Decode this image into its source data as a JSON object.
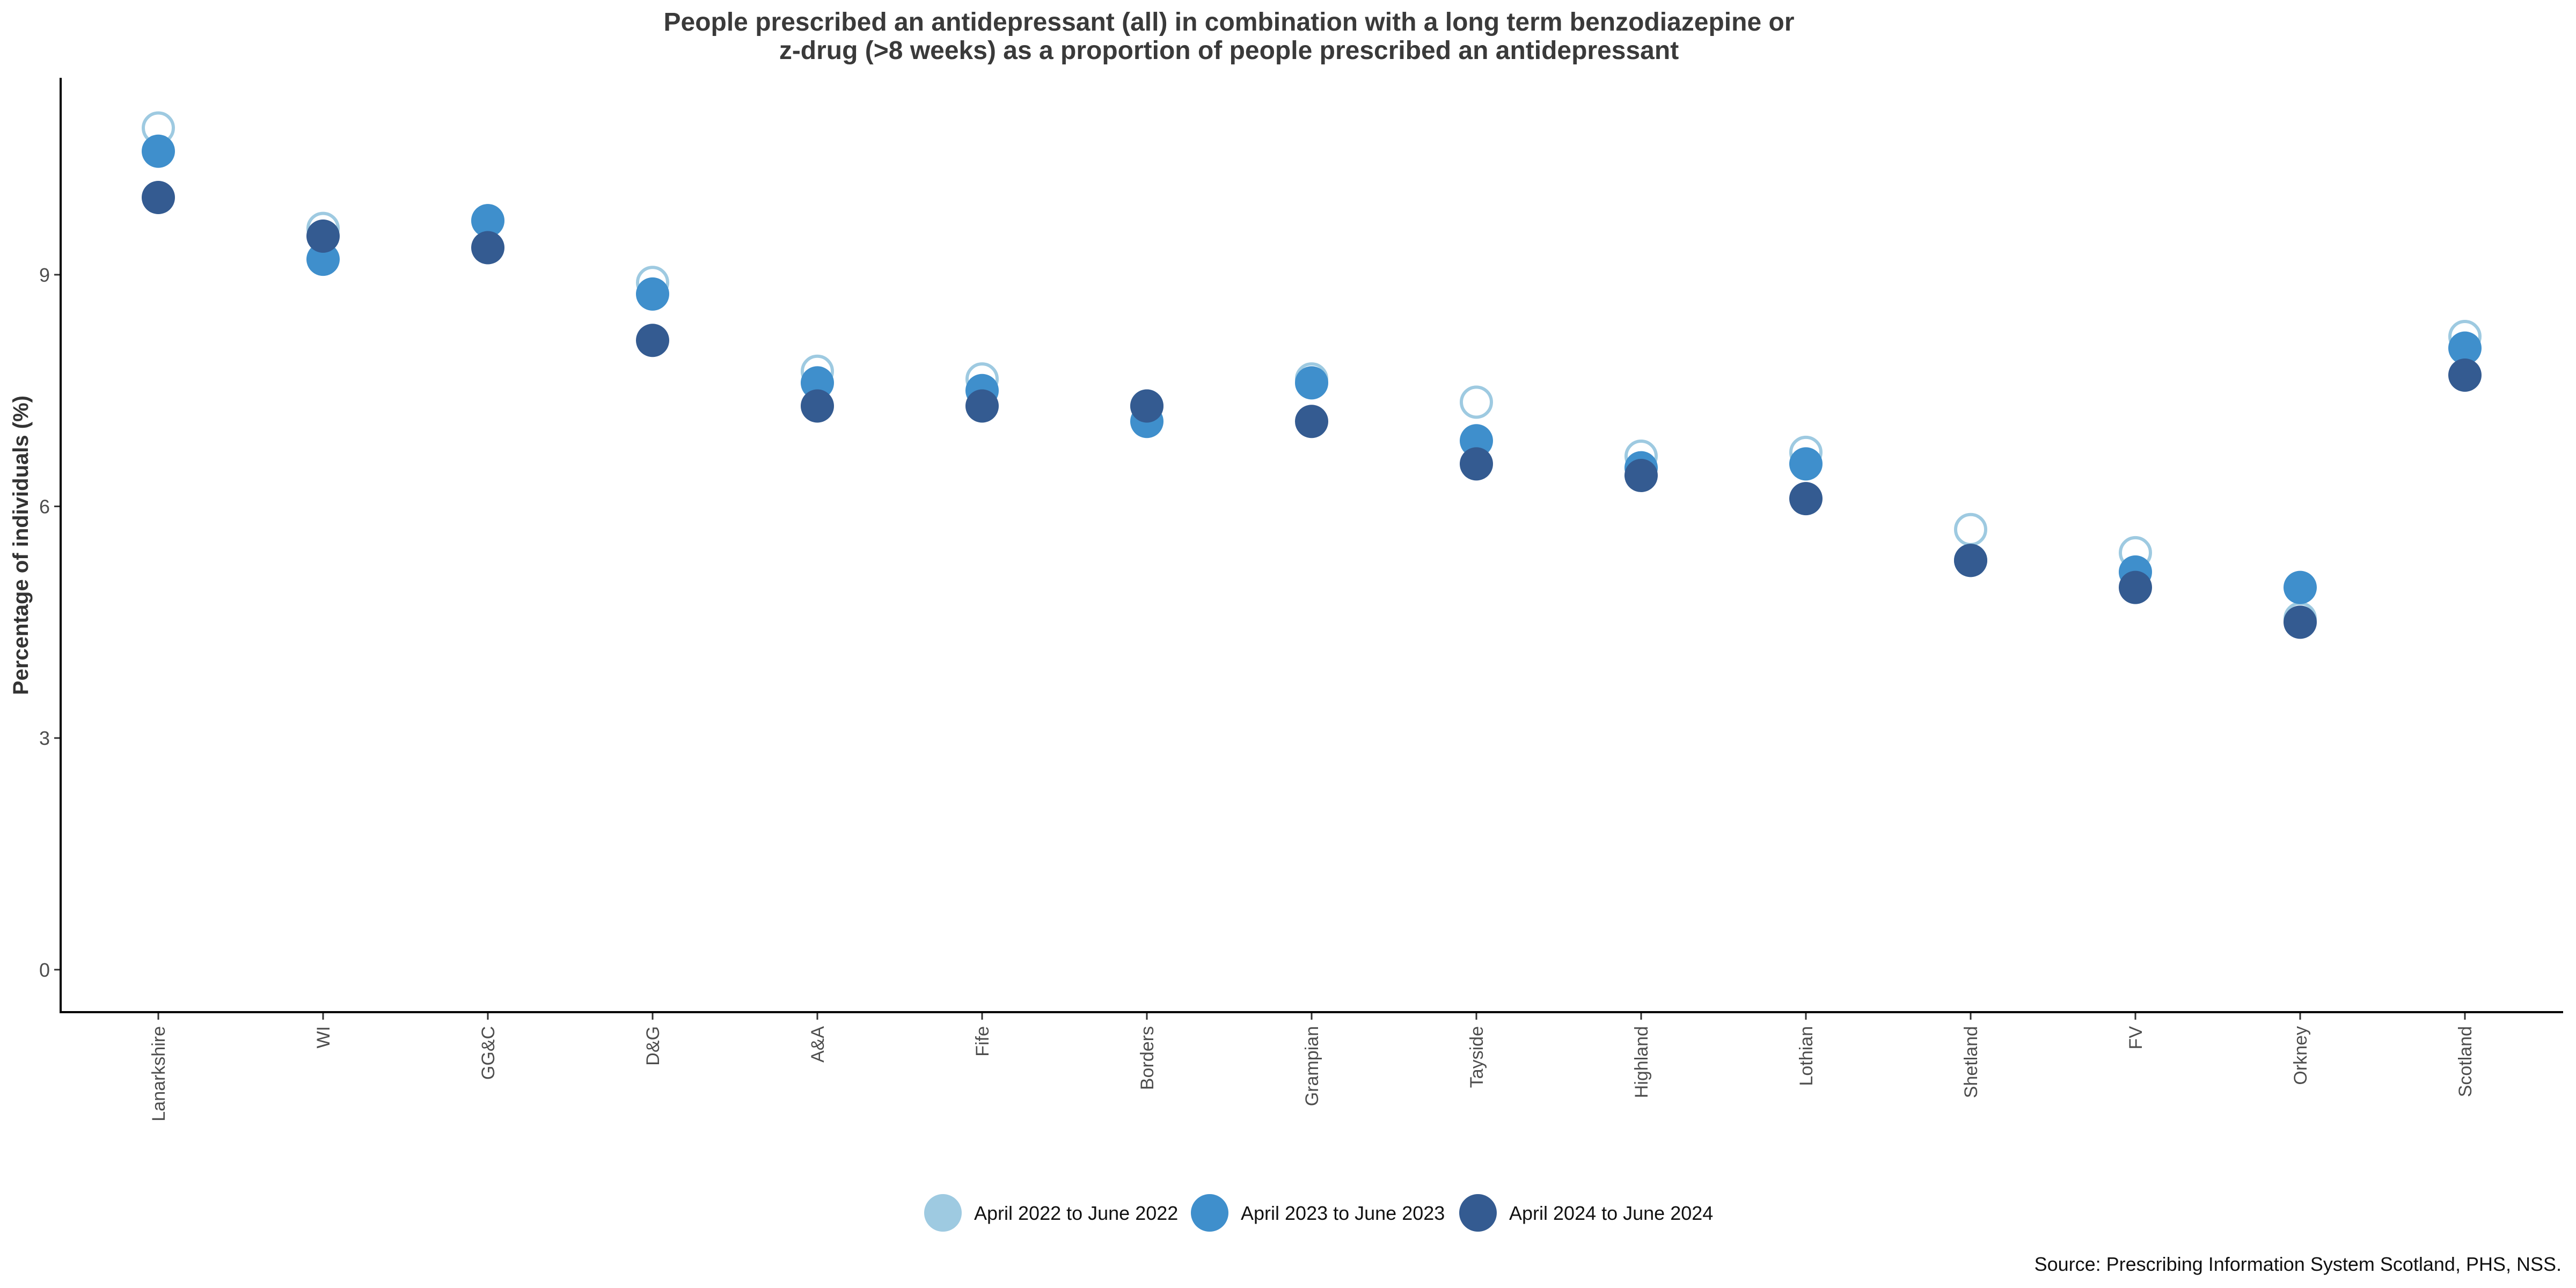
{
  "chart_data": {
    "type": "scatter",
    "title": [
      "People prescribed an antidepressant (all) in combination with a long term benzodiazepine or",
      "z-drug (>8 weeks) as a proportion of people prescribed an antidepressant"
    ],
    "xlabel": "",
    "ylabel": "Percentage of individuals (%)",
    "ylim": [
      -0.55,
      11.55
    ],
    "yticks": [
      0,
      3,
      6,
      9
    ],
    "grid": false,
    "legend_position": "bottom",
    "source": "Source: Prescribing Information System Scotland, PHS, NSS.",
    "categories": [
      "Lanarkshire",
      "WI",
      "GG&C",
      "D&G",
      "A&A",
      "Fife",
      "Borders",
      "Grampian",
      "Tayside",
      "Highland",
      "Lothian",
      "Shetland",
      "FV",
      "Orkney",
      "Scotland"
    ],
    "series": [
      {
        "name": "April 2022 to June 2022",
        "color": "#9ecae1",
        "marker": "hollow-circle",
        "values": [
          10.9,
          9.6,
          9.7,
          8.9,
          7.75,
          7.65,
          7.3,
          7.65,
          7.35,
          6.65,
          6.7,
          5.7,
          5.4,
          4.55,
          8.2
        ]
      },
      {
        "name": "April 2023 to June 2023",
        "color": "#3f8fcc",
        "marker": "filled-circle",
        "values": [
          10.6,
          9.2,
          9.7,
          8.75,
          7.6,
          7.5,
          7.1,
          7.6,
          6.85,
          6.5,
          6.55,
          5.3,
          5.15,
          4.95,
          8.05
        ]
      },
      {
        "name": "April 2024 to June 2024",
        "color": "#345b91",
        "marker": "filled-circle",
        "values": [
          10.0,
          9.5,
          9.35,
          8.15,
          7.3,
          7.3,
          7.3,
          7.1,
          6.55,
          6.4,
          6.1,
          5.3,
          4.95,
          4.5,
          7.7
        ]
      }
    ]
  }
}
